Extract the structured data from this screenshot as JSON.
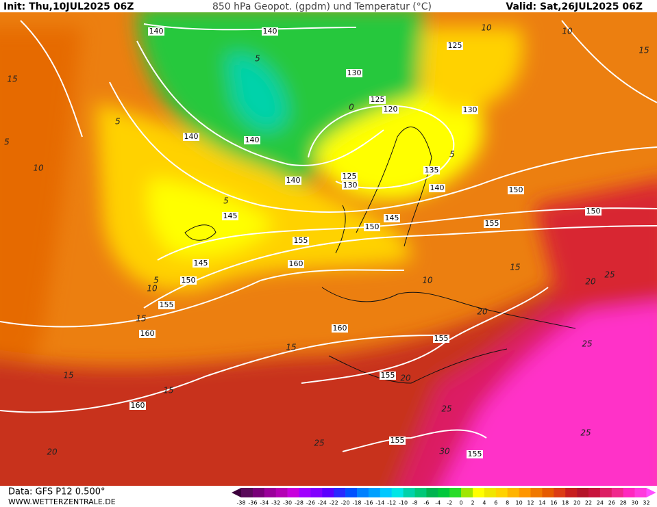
{
  "header": {
    "init": "Init: Thu,10JUL2025 06Z",
    "title": "850 hPa Geopot. (gpdm) und Temperatur (°C)",
    "valid": "Valid: Sat,26JUL2025 06Z"
  },
  "footer": {
    "data_source": "Data: GFS P12 0.500°",
    "website": "WWW.WETTERZENTRALE.DE"
  },
  "colorbar": {
    "labels": [
      -38,
      -36,
      -34,
      -32,
      -30,
      -28,
      -26,
      -24,
      -22,
      -20,
      -18,
      -16,
      -14,
      -12,
      -10,
      -8,
      -6,
      -4,
      -2,
      0,
      2,
      4,
      6,
      8,
      10,
      12,
      14,
      16,
      18,
      20,
      22,
      24,
      26,
      28,
      30,
      32
    ],
    "colors": [
      "#5a0a5a",
      "#780078",
      "#9a009a",
      "#b400b4",
      "#c800dc",
      "#a000ff",
      "#8000ff",
      "#5a00ff",
      "#2828ff",
      "#0050ff",
      "#0080ff",
      "#00a0ff",
      "#00c8ff",
      "#00e6e6",
      "#00d2aa",
      "#00c878",
      "#00b450",
      "#00c83c",
      "#28dc28",
      "#a0e600",
      "#ffff00",
      "#f0e600",
      "#ffd200",
      "#ffb400",
      "#ff9600",
      "#f07800",
      "#e65a00",
      "#dc3c14",
      "#c81e1e",
      "#b41428",
      "#c8143c",
      "#dc1e64",
      "#f0288c",
      "#ff28be",
      "#ff3cdc"
    ],
    "low_color": "#3c003c",
    "high_color": "#ff50ff"
  },
  "map": {
    "geopotential_labels": [
      140,
      140,
      125,
      130,
      125,
      120,
      130,
      140,
      140,
      140,
      125,
      130,
      135,
      140,
      150,
      150,
      145,
      145,
      150,
      155,
      155,
      145,
      160,
      150,
      155,
      160,
      160,
      155,
      155,
      160,
      155,
      155
    ],
    "temperature_labels": [
      15,
      5,
      10,
      5,
      5,
      10,
      5,
      15,
      15,
      15,
      20,
      15,
      10,
      20,
      25,
      20,
      25,
      25,
      30,
      25,
      25,
      10,
      15,
      10,
      5,
      0,
      5,
      15,
      20
    ]
  }
}
